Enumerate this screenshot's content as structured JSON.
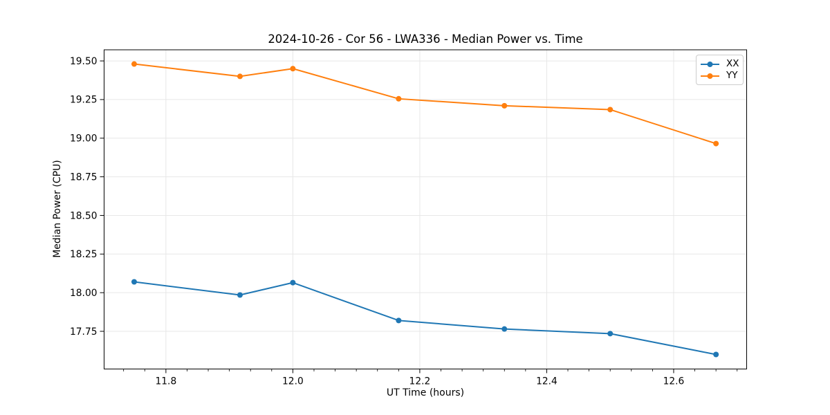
{
  "figure": {
    "title": "2024-10-26 - Cor 56 - LWA336 - Median Power vs. Time"
  },
  "chart_data": {
    "type": "line",
    "title": "2024-10-26 - Cor 56 - LWA336 - Median Power vs. Time",
    "xlabel": "UT Time (hours)",
    "ylabel": "Median Power (CPU)",
    "xlim": [
      11.7026,
      12.715
    ],
    "ylim": [
      17.506,
      19.572
    ],
    "x_ticks": [
      11.8,
      12.0,
      12.2,
      12.4,
      12.6
    ],
    "x_tick_labels": [
      "11.8",
      "12.0",
      "12.2",
      "12.4",
      "12.6"
    ],
    "y_ticks": [
      17.75,
      18.0,
      18.25,
      18.5,
      18.75,
      19.0,
      19.25,
      19.5
    ],
    "y_tick_labels": [
      "17.75",
      "18.00",
      "18.25",
      "18.50",
      "18.75",
      "19.00",
      "19.25",
      "19.50"
    ],
    "x_minor_tick_step": 0.0333333,
    "grid": true,
    "grid_color": "#e7e7e7",
    "spine_color": "#000000",
    "legend_position": "upper right",
    "x": [
      11.75,
      11.9167,
      12.0,
      12.1667,
      12.3333,
      12.5,
      12.6667
    ],
    "series": [
      {
        "name": "XX",
        "color": "#1f77b4",
        "marker": "circle",
        "y": [
          18.07,
          17.985,
          18.065,
          17.82,
          17.765,
          17.735,
          17.6
        ]
      },
      {
        "name": "YY",
        "color": "#ff7f0e",
        "marker": "circle",
        "y": [
          19.48,
          19.4,
          19.45,
          19.255,
          19.21,
          19.185,
          18.965
        ]
      }
    ]
  }
}
